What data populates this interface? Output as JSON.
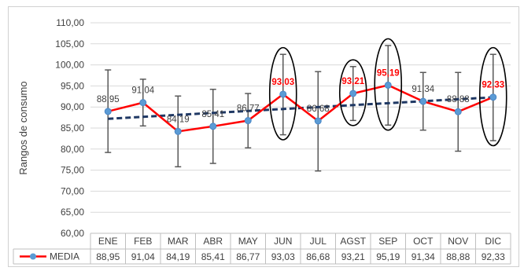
{
  "chart_data": {
    "type": "line",
    "ylabel": "Rangos de consumo",
    "ylim": [
      60,
      110
    ],
    "yticks": [
      "60,00",
      "65,00",
      "70,00",
      "75,00",
      "80,00",
      "85,00",
      "90,00",
      "95,00",
      "100,00",
      "105,00",
      "110,00"
    ],
    "categories": [
      "ENE",
      "FEB",
      "MAR",
      "ABR",
      "MAY",
      "JUN",
      "JUL",
      "AGST",
      "SEP",
      "OCT",
      "NOV",
      "DIC"
    ],
    "series": [
      {
        "name": "MEDIA",
        "color": "#ff0000",
        "marker_color": "#5b9bd5",
        "values": [
          88.95,
          91.04,
          84.19,
          85.41,
          86.77,
          93.03,
          86.68,
          93.21,
          95.19,
          91.34,
          88.88,
          92.33
        ],
        "labels": [
          "88,95",
          "91,04",
          "84,19",
          "85,41",
          "86,77",
          "93,03",
          "86,68",
          "93,21",
          "95,19",
          "91,34",
          "88,88",
          "92,33"
        ],
        "highlighted": [
          false,
          false,
          false,
          false,
          false,
          true,
          false,
          true,
          true,
          false,
          false,
          true
        ],
        "error_low": [
          79.2,
          85.5,
          75.8,
          76.6,
          80.3,
          83.4,
          74.8,
          86.8,
          85.7,
          84.5,
          79.5,
          82.0
        ],
        "error_high": [
          98.8,
          96.6,
          92.6,
          94.2,
          93.2,
          102.5,
          98.4,
          99.6,
          104.6,
          98.2,
          98.2,
          102.5
        ]
      }
    ],
    "trendline": {
      "color": "#1f3864",
      "style": "dashed",
      "start": 87.2,
      "end": 92.3
    },
    "highlight_ellipse_color": "#000000",
    "grid": true,
    "legend_placement": "data-table-left"
  }
}
